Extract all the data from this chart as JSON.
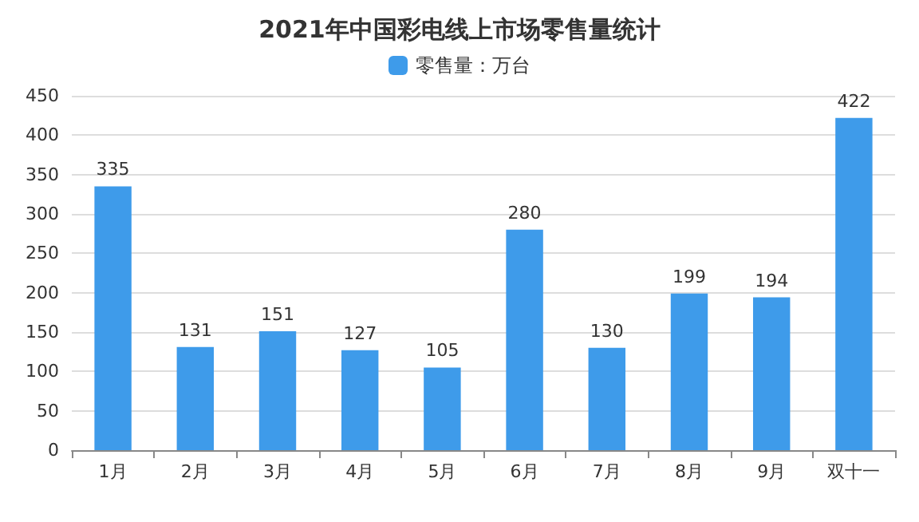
{
  "chart_data": {
    "type": "bar",
    "title": "2021年中国彩电线上市场零售量统计",
    "categories": [
      "1月",
      "2月",
      "3月",
      "4月",
      "5月",
      "6月",
      "7月",
      "8月",
      "9月",
      "双十一"
    ],
    "series": [
      {
        "name": "零售量：万台",
        "color": "#3e9bea",
        "values": [
          335,
          131,
          151,
          127,
          105,
          280,
          130,
          199,
          194,
          422
        ]
      }
    ],
    "ylim": [
      0,
      450
    ],
    "yticks": [
      0,
      50,
      100,
      150,
      200,
      250,
      300,
      350,
      400,
      450
    ],
    "grid": "y",
    "legend": "top",
    "data_labels": true
  }
}
